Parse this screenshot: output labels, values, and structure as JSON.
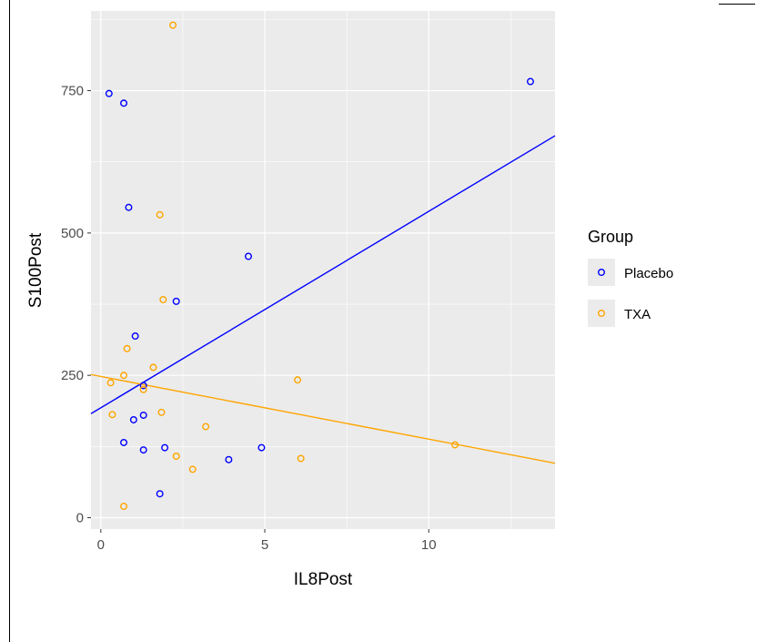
{
  "chart_data": {
    "type": "scatter",
    "xlabel": "IL8Post",
    "ylabel": "S100Post",
    "xlim": [
      -0.3,
      13.85
    ],
    "ylim": [
      -20,
      890
    ],
    "x_ticks": [
      0,
      5,
      10
    ],
    "y_ticks": [
      0,
      250,
      500,
      750
    ],
    "grid": true,
    "legend": {
      "title": "Group",
      "position": "right"
    },
    "series": [
      {
        "name": "Placebo",
        "color": "#0000ff",
        "points": [
          {
            "x": 0.25,
            "y": 745
          },
          {
            "x": 0.7,
            "y": 728
          },
          {
            "x": 0.85,
            "y": 545
          },
          {
            "x": 13.1,
            "y": 766
          },
          {
            "x": 4.5,
            "y": 459
          },
          {
            "x": 2.3,
            "y": 380
          },
          {
            "x": 1.05,
            "y": 319
          },
          {
            "x": 1.3,
            "y": 232
          },
          {
            "x": 1.3,
            "y": 180
          },
          {
            "x": 1.0,
            "y": 172
          },
          {
            "x": 0.7,
            "y": 132
          },
          {
            "x": 1.3,
            "y": 119
          },
          {
            "x": 1.95,
            "y": 123
          },
          {
            "x": 4.9,
            "y": 123
          },
          {
            "x": 3.9,
            "y": 102
          },
          {
            "x": 1.8,
            "y": 42
          }
        ],
        "fit": {
          "intercept": 193,
          "slope": 34.5
        }
      },
      {
        "name": "TXA",
        "color": "#ffa500",
        "points": [
          {
            "x": 2.2,
            "y": 865
          },
          {
            "x": 1.8,
            "y": 532
          },
          {
            "x": 1.9,
            "y": 383
          },
          {
            "x": 0.8,
            "y": 297
          },
          {
            "x": 1.6,
            "y": 264
          },
          {
            "x": 0.7,
            "y": 250
          },
          {
            "x": 0.3,
            "y": 237
          },
          {
            "x": 1.3,
            "y": 225
          },
          {
            "x": 6.0,
            "y": 242
          },
          {
            "x": 0.35,
            "y": 181
          },
          {
            "x": 1.85,
            "y": 185
          },
          {
            "x": 3.2,
            "y": 160
          },
          {
            "x": 2.3,
            "y": 108
          },
          {
            "x": 2.8,
            "y": 85
          },
          {
            "x": 6.1,
            "y": 104
          },
          {
            "x": 10.8,
            "y": 128
          },
          {
            "x": 0.7,
            "y": 20
          }
        ],
        "fit": {
          "intercept": 248,
          "slope": -11.0
        }
      }
    ]
  }
}
